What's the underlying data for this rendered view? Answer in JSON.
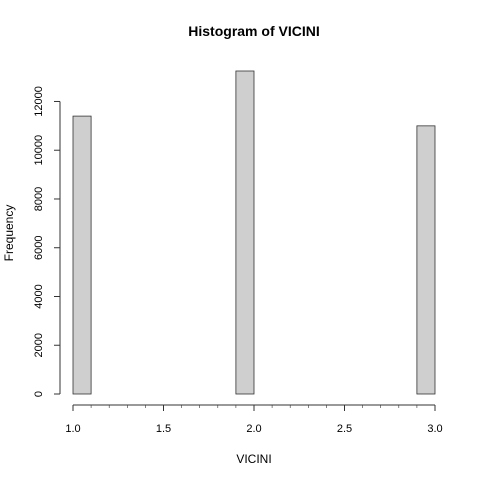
{
  "chart_data": {
    "type": "bar",
    "title": "Histogram of VICINI",
    "xlabel": "VICINI",
    "ylabel": "Frequency",
    "xlim": [
      1.0,
      3.0
    ],
    "ylim": [
      0,
      13250
    ],
    "grid": false,
    "bin_width": 0.1,
    "bin_starts": [
      1.0,
      1.1,
      1.2,
      1.3,
      1.4,
      1.5,
      1.6,
      1.7,
      1.8,
      1.9,
      2.0,
      2.1,
      2.2,
      2.3,
      2.4,
      2.5,
      2.6,
      2.7,
      2.8,
      2.9
    ],
    "values": [
      11400,
      0,
      0,
      0,
      0,
      0,
      0,
      0,
      0,
      13250,
      0,
      0,
      0,
      0,
      0,
      0,
      0,
      0,
      0,
      11000
    ],
    "x_ticks": [
      1.0,
      1.5,
      2.0,
      2.5,
      3.0
    ],
    "x_tick_labels": [
      "1.0",
      "1.5",
      "2.0",
      "2.5",
      "3.0"
    ],
    "y_ticks": [
      0,
      2000,
      4000,
      6000,
      8000,
      10000,
      12000
    ],
    "y_tick_labels": [
      "0",
      "2000",
      "4000",
      "6000",
      "8000",
      "10000",
      "12000"
    ],
    "colors": {
      "bar_fill": "#cfcfcf",
      "bar_stroke": "#333333",
      "axis": "#333333"
    }
  }
}
